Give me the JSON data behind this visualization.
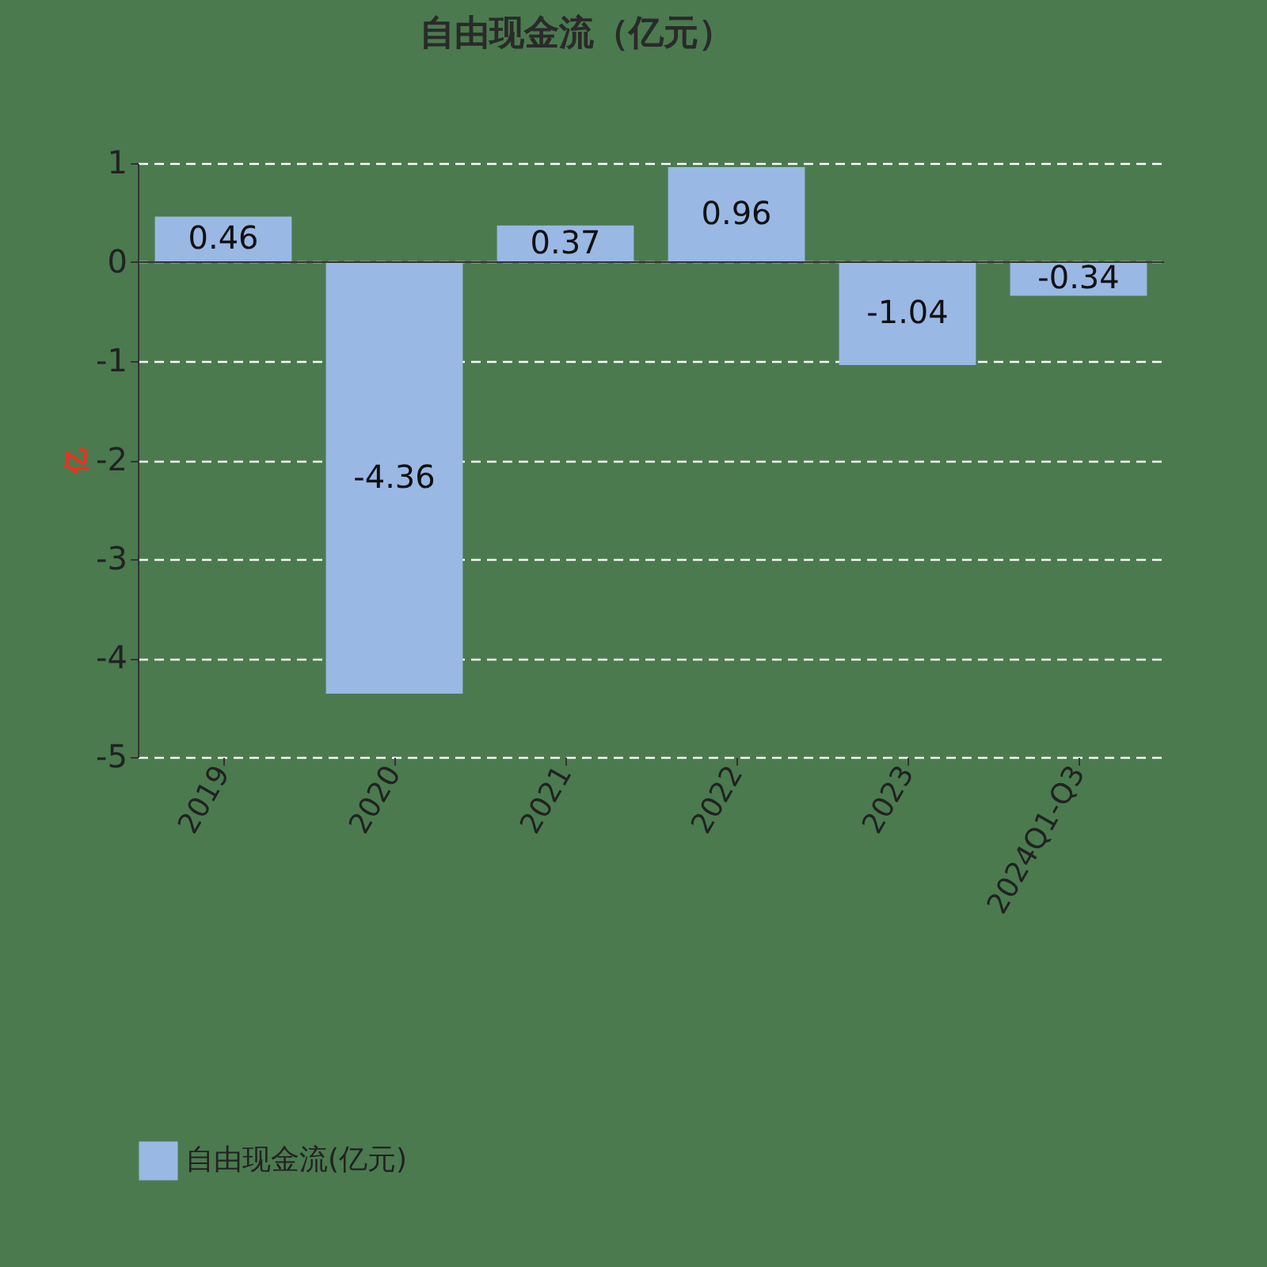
{
  "chart_data": {
    "type": "bar",
    "title": "自由现金流（亿元）",
    "ylabel": "亿",
    "categories": [
      "2019",
      "2020",
      "2021",
      "2022",
      "2023",
      "2024Q1-Q3"
    ],
    "series": [
      {
        "name": "自由现金流(亿元)",
        "color": "#9ab8e4",
        "values": [
          0.46,
          -4.36,
          0.37,
          0.96,
          -1.04,
          -0.34
        ]
      }
    ],
    "ylim": [
      -5,
      1
    ],
    "yticks": [
      -5,
      -4,
      -3,
      -2,
      -1,
      0,
      1
    ],
    "grid": "y",
    "legend": "bottom",
    "data_labels": true
  }
}
